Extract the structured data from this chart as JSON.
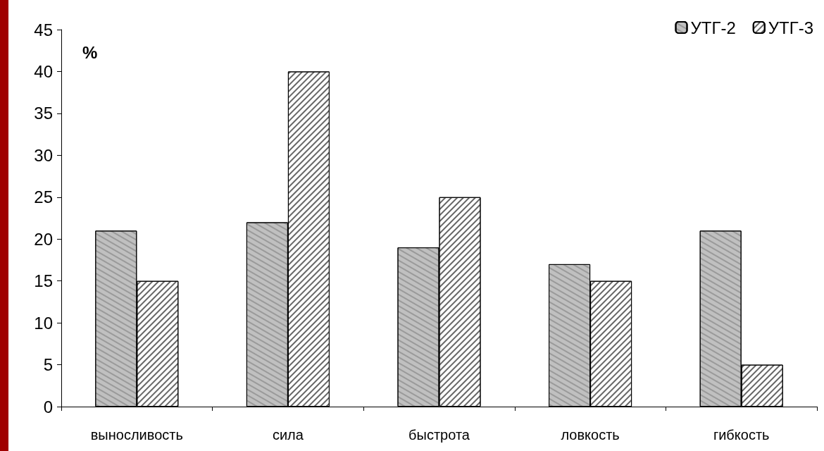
{
  "chart_data": {
    "type": "bar",
    "ylabel": "%",
    "categories": [
      "выносливость",
      "сила",
      "быстрота",
      "ловкость",
      "гибкость"
    ],
    "series": [
      {
        "name": "УТГ-2",
        "color": "#c0c0c0",
        "values": [
          21,
          22,
          19,
          17,
          21
        ]
      },
      {
        "name": "УТГ-3",
        "color": "#ffffff",
        "values": [
          15,
          40,
          25,
          15,
          5
        ]
      }
    ],
    "ylim": [
      0,
      45
    ],
    "yticks": [
      0,
      5,
      10,
      15,
      20,
      25,
      30,
      35,
      40,
      45
    ],
    "grid": false,
    "legend": "top right"
  }
}
